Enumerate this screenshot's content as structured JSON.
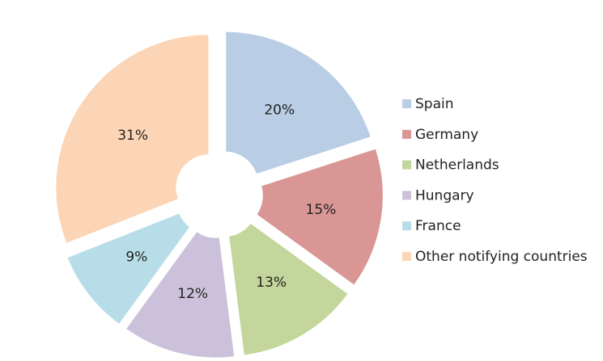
{
  "chart_data": {
    "type": "pie",
    "categories": [
      "Spain",
      "Germany",
      "Netherlands",
      "Hungary",
      "France",
      "Other notifying countries"
    ],
    "values": [
      20,
      15,
      13,
      12,
      9,
      31
    ],
    "value_labels": [
      "20%",
      "15%",
      "13%",
      "12%",
      "9%",
      "31%"
    ],
    "colors": [
      "#b9cde5",
      "#d99694",
      "#c3d69b",
      "#ccc1da",
      "#b7dee8",
      "#fbd5b5"
    ],
    "legend": "right"
  }
}
